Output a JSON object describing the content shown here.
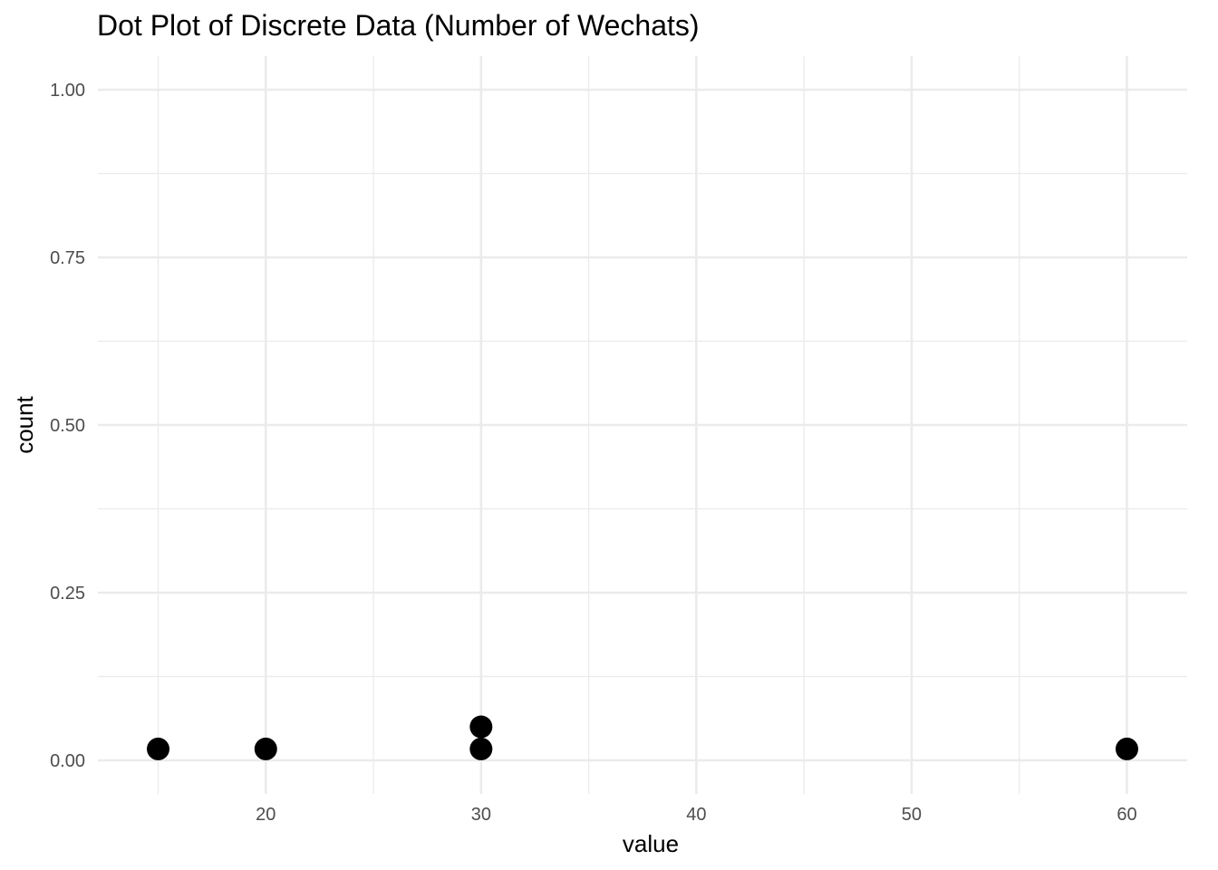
{
  "chart_data": {
    "type": "scatter",
    "title": "Dot Plot of Discrete Data (Number of Wechats)",
    "xlabel": "value",
    "ylabel": "count",
    "xlim": [
      12.2,
      62.8
    ],
    "ylim": [
      -0.05,
      1.05
    ],
    "x_ticks": [
      20,
      30,
      40,
      50,
      60
    ],
    "x_minor_ticks": [
      15,
      25,
      35,
      45,
      55
    ],
    "y_ticks": [
      0.0,
      0.25,
      0.5,
      0.75,
      1.0
    ],
    "y_tick_labels": [
      "0.00",
      "0.25",
      "0.50",
      "0.75",
      "1.00"
    ],
    "y_minor_ticks": [
      0.125,
      0.375,
      0.625,
      0.875
    ],
    "grid": true,
    "legend": "none",
    "points": [
      {
        "x": 15,
        "y": 0.017
      },
      {
        "x": 20,
        "y": 0.017
      },
      {
        "x": 30,
        "y": 0.017
      },
      {
        "x": 30,
        "y": 0.05
      },
      {
        "x": 60,
        "y": 0.017
      }
    ],
    "colors": {
      "dots": "#000000",
      "grid": "#ebebeb",
      "tick_text": "#4d4d4d"
    }
  }
}
